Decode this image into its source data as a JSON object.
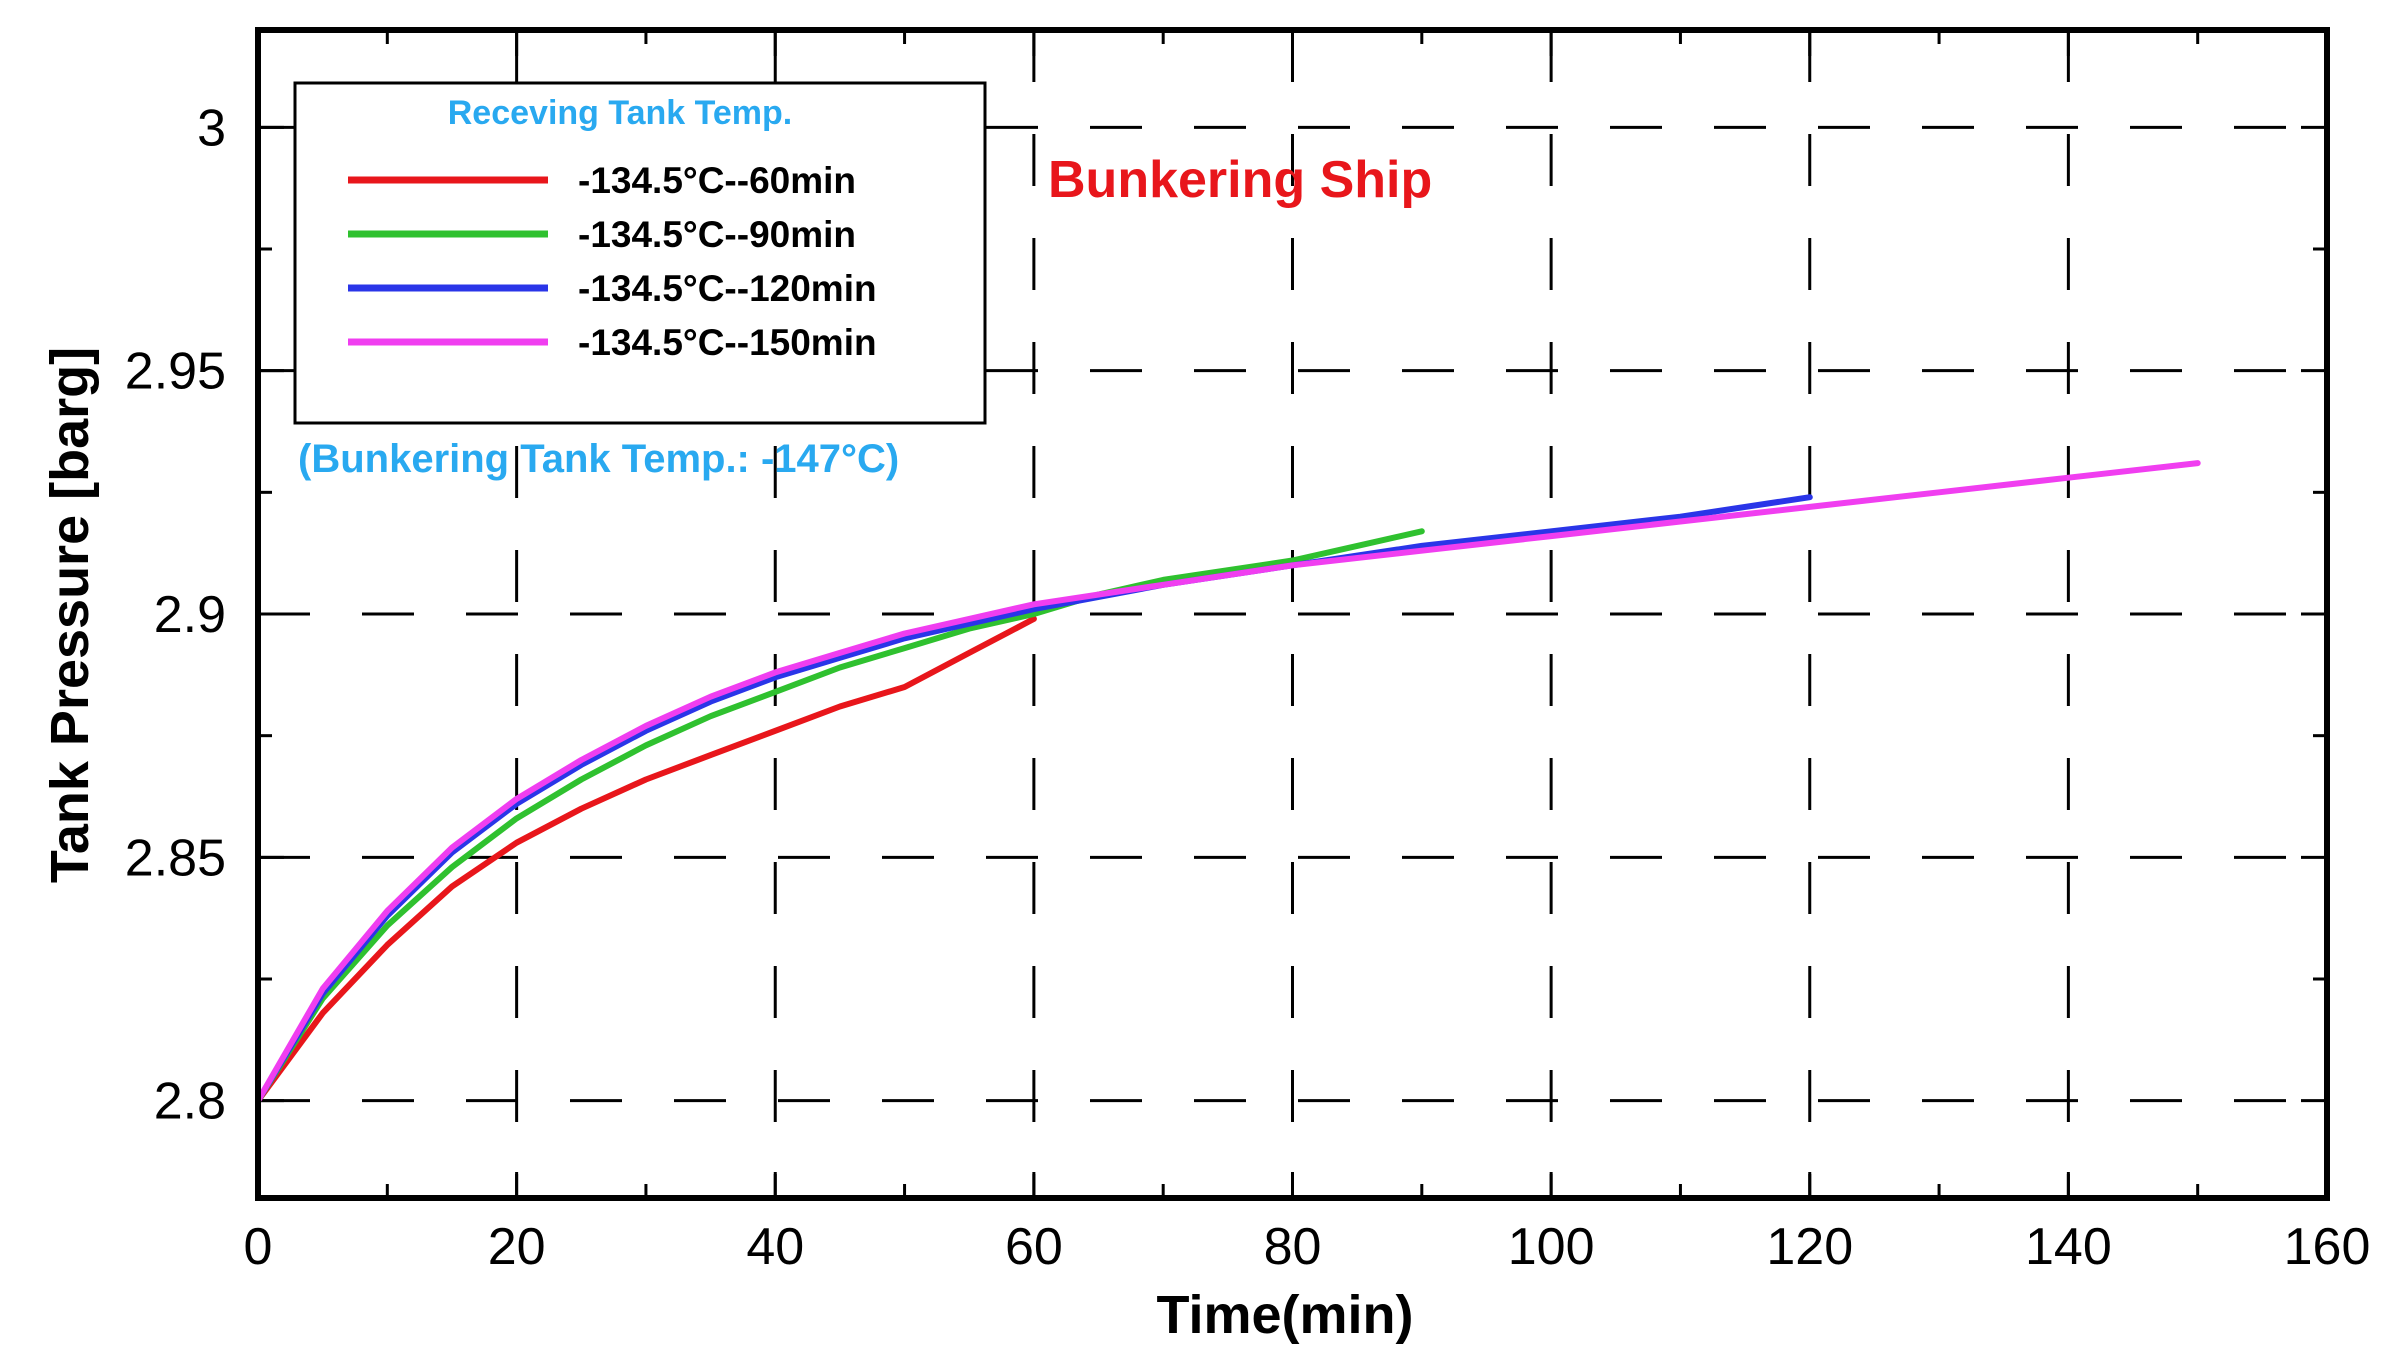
{
  "chart_data": {
    "type": "line",
    "title": "",
    "xlabel": "Time(min)",
    "ylabel": "Tank Pressure [barg]",
    "xlim": [
      0,
      160
    ],
    "ylim": [
      2.78,
      3.02
    ],
    "xticks": [
      0,
      20,
      40,
      60,
      80,
      100,
      120,
      140,
      160
    ],
    "yticks": [
      2.8,
      2.85,
      2.9,
      2.95,
      3
    ],
    "xtick_labels": [
      "0",
      "20",
      "40",
      "60",
      "80",
      "100",
      "120",
      "140",
      "160"
    ],
    "ytick_labels": [
      "2.8",
      "2.85",
      "2.9",
      "2.95",
      "3"
    ],
    "grid": true,
    "legend_title": "Receving Tank Temp.",
    "legend_note": "(Bunkering Tank Temp.: -147°C)",
    "legend_position": "top-left",
    "annotation": "Bunkering Ship",
    "series": [
      {
        "name": "-134.5°C--60min",
        "color": "#e8161b",
        "x": [
          0,
          5,
          10,
          15,
          20,
          25,
          30,
          35,
          40,
          45,
          50,
          55,
          60
        ],
        "y": [
          2.8,
          2.818,
          2.832,
          2.844,
          2.853,
          2.86,
          2.866,
          2.871,
          2.876,
          2.881,
          2.885,
          2.892,
          2.899
        ]
      },
      {
        "name": "-134.5°C--90min",
        "color": "#2fc12f",
        "x": [
          0,
          5,
          10,
          15,
          20,
          25,
          30,
          35,
          40,
          45,
          50,
          55,
          60,
          65,
          70,
          75,
          80,
          85,
          90
        ],
        "y": [
          2.8,
          2.821,
          2.836,
          2.848,
          2.858,
          2.866,
          2.873,
          2.879,
          2.884,
          2.889,
          2.893,
          2.897,
          2.9,
          2.904,
          2.907,
          2.909,
          2.911,
          2.914,
          2.917
        ]
      },
      {
        "name": "-134.5°C--120min",
        "color": "#2a35e8",
        "x": [
          0,
          5,
          10,
          15,
          20,
          25,
          30,
          35,
          40,
          45,
          50,
          55,
          60,
          70,
          80,
          90,
          100,
          110,
          120
        ],
        "y": [
          2.8,
          2.822,
          2.838,
          2.851,
          2.861,
          2.869,
          2.876,
          2.882,
          2.887,
          2.891,
          2.895,
          2.898,
          2.901,
          2.906,
          2.91,
          2.914,
          2.917,
          2.92,
          2.924
        ]
      },
      {
        "name": "-134.5°C--150min",
        "color": "#f03ef0",
        "x": [
          0,
          5,
          10,
          15,
          20,
          25,
          30,
          35,
          40,
          45,
          50,
          55,
          60,
          70,
          80,
          90,
          100,
          110,
          120,
          130,
          140,
          150
        ],
        "y": [
          2.8,
          2.823,
          2.839,
          2.852,
          2.862,
          2.87,
          2.877,
          2.883,
          2.888,
          2.892,
          2.896,
          2.899,
          2.902,
          2.906,
          2.91,
          2.913,
          2.916,
          2.919,
          2.922,
          2.925,
          2.928,
          2.931
        ]
      }
    ]
  }
}
